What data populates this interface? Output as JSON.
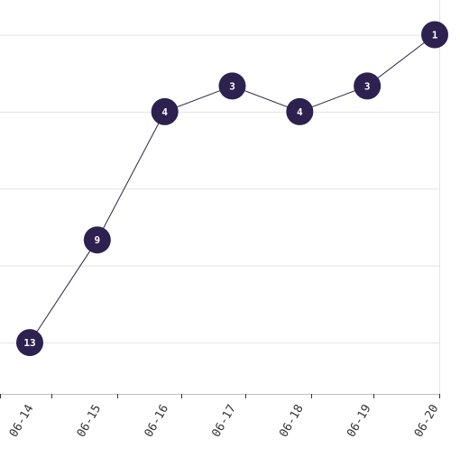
{
  "chart_data": {
    "type": "line",
    "categories": [
      "06-14",
      "06-15",
      "06-16",
      "06-17",
      "06-18",
      "06-19",
      "06-20"
    ],
    "series": [
      {
        "values": [
          13,
          9,
          4,
          3,
          4,
          3,
          1
        ]
      }
    ],
    "ylim": [
      15,
      0
    ],
    "y_reversed": true,
    "grid": true,
    "legend": "none",
    "colors": {
      "point_fill": "#2d2150",
      "line": "#2a2447",
      "grid": "#e3e3e3",
      "label_text": "#ffffff"
    }
  }
}
